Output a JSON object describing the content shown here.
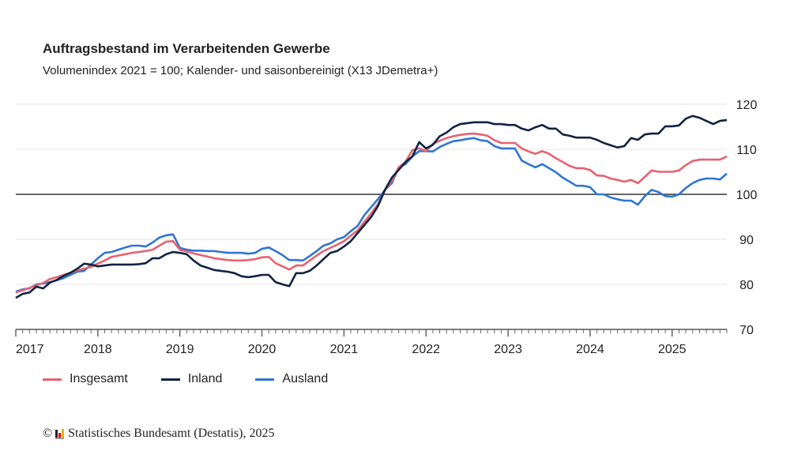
{
  "chart_data": {
    "type": "line",
    "title": "Auftragsbestand im Verarbeitenden Gewerbe",
    "subtitle": "Volumenindex 2021 = 100; Kalender- und saisonbereinigt (X13 JDemetra+)",
    "x_start": "2017-01",
    "x_end": "2025-09",
    "x_frequency": "monthly",
    "xticks": [
      "2017",
      "2018",
      "2019",
      "2020",
      "2021",
      "2022",
      "2023",
      "2024",
      "2025"
    ],
    "yticks": [
      70,
      80,
      90,
      100,
      110,
      120
    ],
    "ylim": [
      70,
      120
    ],
    "reference_line": 100,
    "grid": true,
    "legend_position": "bottom-left",
    "series": [
      {
        "name": "Insgesamt",
        "color": "#e8616f",
        "values": [
          78.2,
          78.7,
          79.2,
          79.8,
          80.3,
          81.2,
          81.6,
          82.1,
          82.6,
          83.1,
          83.5,
          83.9,
          84.6,
          85.3,
          86.1,
          86.4,
          86.7,
          87,
          87.2,
          87.4,
          87.7,
          88.6,
          89.5,
          89.6,
          87.7,
          87.3,
          86.9,
          86.5,
          86.2,
          85.8,
          85.6,
          85.4,
          85.3,
          85.3,
          85.4,
          85.6,
          86,
          86.1,
          84.7,
          84,
          83.3,
          84.2,
          84.2,
          85.3,
          86.4,
          87.4,
          88.1,
          88.8,
          89.6,
          90.8,
          92,
          93.9,
          95.8,
          97.9,
          101,
          103,
          106,
          107.2,
          109.8,
          110.2,
          109.6,
          111.2,
          111.9,
          112.5,
          112.9,
          113.2,
          113.4,
          113.5,
          113.3,
          113,
          112,
          111.4,
          111.4,
          111.4,
          110.2,
          109.5,
          109,
          109.6,
          109,
          108,
          107.2,
          106.3,
          105.8,
          105.8,
          105.4,
          104.2,
          104.1,
          103.5,
          103.2,
          102.8,
          103.2,
          102.5,
          103.9,
          105.3,
          105,
          105,
          105,
          105.3,
          106.5,
          107.4,
          107.7,
          107.7,
          107.7,
          107.7,
          108.4
        ]
      },
      {
        "name": "Inland",
        "color": "#0f2343",
        "values": [
          77,
          77.9,
          78.2,
          79.5,
          79.1,
          80.4,
          81,
          81.9,
          82.6,
          83.5,
          84.6,
          84.4,
          84,
          84.2,
          84.4,
          84.4,
          84.4,
          84.4,
          84.5,
          84.7,
          85.8,
          85.8,
          86.7,
          87.2,
          87,
          86.7,
          85.3,
          84.2,
          83.7,
          83.2,
          83,
          82.8,
          82.5,
          81.8,
          81.6,
          81.8,
          82.1,
          82.1,
          80.5,
          80,
          79.6,
          82.5,
          82.5,
          83,
          84.2,
          85.6,
          87,
          87.4,
          88.4,
          89.6,
          91.4,
          93.2,
          95,
          97.5,
          101,
          103.7,
          105.4,
          107.2,
          108.4,
          111.6,
          110.2,
          111,
          112.9,
          113.7,
          114.9,
          115.6,
          115.8,
          116,
          116,
          116,
          115.6,
          115.6,
          115.4,
          115.4,
          114.6,
          114.2,
          114.9,
          115.4,
          114.6,
          114.6,
          113.3,
          113,
          112.6,
          112.6,
          112.6,
          112.1,
          111.4,
          110.9,
          110.4,
          110.7,
          112.5,
          112.1,
          113.3,
          113.5,
          113.5,
          115.1,
          115.1,
          115.3,
          116.8,
          117.4,
          117,
          116.3,
          115.6,
          116.3,
          116.5
        ]
      },
      {
        "name": "Ausland",
        "color": "#2f76d2",
        "values": [
          78.4,
          78.9,
          79.1,
          80,
          80.2,
          80.5,
          80.9,
          81.4,
          82.1,
          82.8,
          83,
          84.4,
          85.8,
          87,
          87.2,
          87.7,
          88.2,
          88.6,
          88.6,
          88.4,
          89.3,
          90.4,
          90.9,
          91.1,
          88.1,
          87.7,
          87.5,
          87.5,
          87.4,
          87.4,
          87.2,
          87,
          87,
          87,
          86.8,
          87,
          87.9,
          88.2,
          87.4,
          86.5,
          85.4,
          85.4,
          85.3,
          86.3,
          87.4,
          88.6,
          89.1,
          90,
          90.5,
          91.8,
          93,
          95.4,
          97.2,
          99,
          101,
          102.5,
          106,
          106.7,
          108.4,
          109.6,
          109.6,
          109.5,
          110.5,
          111.2,
          111.8,
          112,
          112.3,
          112.5,
          112,
          111.8,
          110.7,
          110.2,
          110.2,
          110.2,
          107.5,
          106.7,
          106,
          106.7,
          105.8,
          104.9,
          103.7,
          102.8,
          101.9,
          101.9,
          101.6,
          100,
          100,
          99.3,
          98.9,
          98.6,
          98.6,
          97.7,
          99.6,
          101,
          100.5,
          99.6,
          99.5,
          100,
          101.4,
          102.5,
          103.2,
          103.5,
          103.5,
          103.3,
          104.6
        ]
      }
    ]
  },
  "footer": {
    "copyright_symbol": "©",
    "source": "Statistisches Bundesamt (Destatis), 2025"
  }
}
